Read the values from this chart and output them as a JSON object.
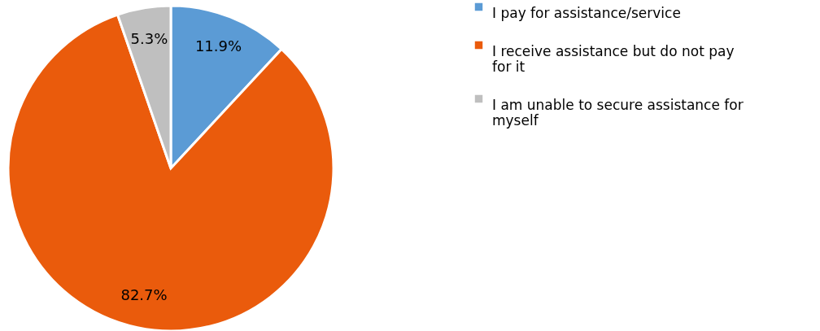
{
  "chart_data": {
    "type": "pie",
    "categories": [
      "I pay for assistance/service",
      "I receive assistance but do not pay for it",
      "I am unable to secure assistance for myself"
    ],
    "values": [
      11.9,
      82.7,
      5.3
    ],
    "colors": [
      "#5b9bd5",
      "#ea5b0c",
      "#bfbfbf"
    ],
    "value_labels": [
      "11.9%",
      "82.7%",
      "5.3%"
    ],
    "legend": "right"
  }
}
